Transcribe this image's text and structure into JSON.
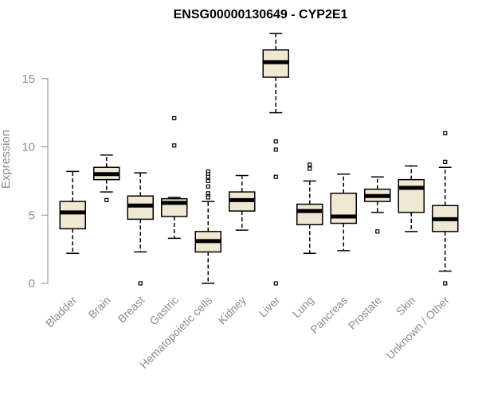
{
  "chart_data": {
    "type": "box",
    "title": "ENSG00000130649 - CYP2E1",
    "xlabel": "",
    "ylabel": "Expression",
    "ylim": [
      0,
      18.5
    ],
    "yticks": [
      0,
      5,
      10,
      15
    ],
    "grid": false,
    "colors": {
      "box_fill": "#efe8d2",
      "stroke": "#000000",
      "axis": "#8c8c8c"
    },
    "categories": [
      "Bladder",
      "Brain",
      "Breast",
      "Gastric",
      "Hematopoietic cells",
      "Kidney",
      "Liver",
      "Lung",
      "Pancreas",
      "Prostate",
      "Skin",
      "Unknown / Other"
    ],
    "boxes": [
      {
        "category": "Bladder",
        "min": 2.2,
        "q1": 4.0,
        "median": 5.2,
        "q3": 6.0,
        "max": 8.2,
        "outliers": []
      },
      {
        "category": "Brain",
        "min": 6.7,
        "q1": 7.6,
        "median": 8.0,
        "q3": 8.5,
        "max": 9.4,
        "outliers": [
          6.1
        ]
      },
      {
        "category": "Breast",
        "min": 2.3,
        "q1": 4.7,
        "median": 5.7,
        "q3": 6.4,
        "max": 8.1,
        "outliers": [
          0.0
        ]
      },
      {
        "category": "Gastric",
        "min": 3.3,
        "q1": 4.9,
        "median": 5.9,
        "q3": 6.2,
        "max": 6.3,
        "outliers": [
          12.1,
          10.1
        ]
      },
      {
        "category": "Hematopoietic cells",
        "min": 0.0,
        "q1": 2.3,
        "median": 3.1,
        "q3": 3.8,
        "max": 6.0,
        "outliers": [
          8.2,
          8.0,
          7.8,
          7.5,
          7.1,
          6.6,
          6.4,
          6.3
        ]
      },
      {
        "category": "Kidney",
        "min": 3.9,
        "q1": 5.3,
        "median": 6.1,
        "q3": 6.7,
        "max": 7.9,
        "outliers": []
      },
      {
        "category": "Liver",
        "min": 12.5,
        "q1": 15.1,
        "median": 16.2,
        "q3": 17.1,
        "max": 18.3,
        "outliers": [
          10.4,
          9.8,
          7.8,
          0.0
        ]
      },
      {
        "category": "Lung",
        "min": 2.2,
        "q1": 4.3,
        "median": 5.3,
        "q3": 5.8,
        "max": 7.5,
        "outliers": [
          8.7,
          8.4
        ]
      },
      {
        "category": "Pancreas",
        "min": 2.4,
        "q1": 4.4,
        "median": 4.9,
        "q3": 6.6,
        "max": 8.0,
        "outliers": []
      },
      {
        "category": "Prostate",
        "min": 5.2,
        "q1": 6.0,
        "median": 6.4,
        "q3": 6.9,
        "max": 7.8,
        "outliers": [
          3.8
        ]
      },
      {
        "category": "Skin",
        "min": 3.8,
        "q1": 5.2,
        "median": 7.0,
        "q3": 7.6,
        "max": 8.6,
        "outliers": []
      },
      {
        "category": "Unknown / Other",
        "min": 0.9,
        "q1": 3.8,
        "median": 4.7,
        "q3": 5.7,
        "max": 8.5,
        "outliers": [
          11.0,
          8.9,
          0.0
        ]
      }
    ]
  }
}
